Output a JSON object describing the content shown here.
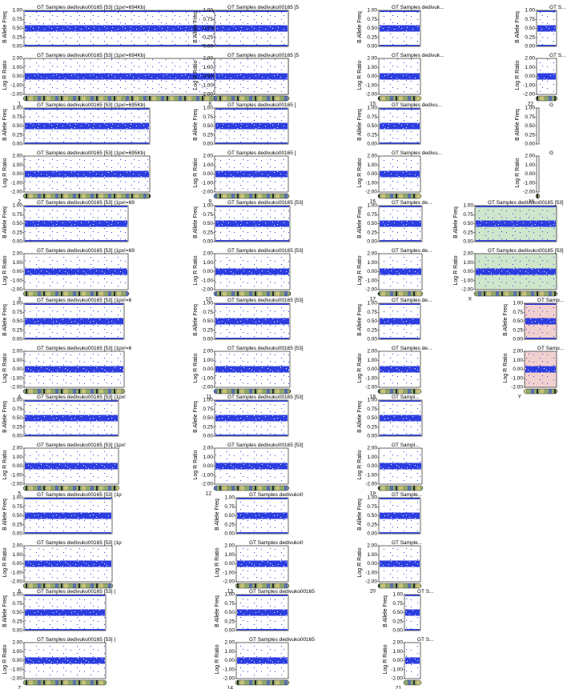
{
  "axis_labels": {
    "baf": "B Allele Freq",
    "lrr": "Log R Ratio"
  },
  "baf_ticks": [
    "1.00",
    "0.75",
    "0.50",
    "0.25",
    "0.00"
  ],
  "lrr_ticks": [
    "2.00",
    "1.00",
    "0.00",
    "-1.00",
    "-2.00"
  ],
  "panels": [
    {
      "chromosome": "1",
      "title": "GT Samples dedivuko00165 [53]  (1px!=694Kb)"
    },
    {
      "chromosome": "2",
      "title": "GT Samples dedivuko00165 [53]  (1px!=695Kb)"
    },
    {
      "chromosome": "3",
      "title": "GT Samples dedivuko00165 [53]  (1px!=69"
    },
    {
      "chromosome": "4",
      "title": "GT Samples dedivuko00165 [53]  (1px!=6"
    },
    {
      "chromosome": "5",
      "title": "GT Samples dedivuko00165 [53]  (1px!"
    },
    {
      "chromosome": "6",
      "title": "GT Samples dedivuko00165 [53]  (1p"
    },
    {
      "chromosome": "7",
      "title": "GT Samples dedivuko00165 [53]  ("
    },
    {
      "chromosome": "8",
      "title": "GT Samples dedivuko00165 [5"
    },
    {
      "chromosome": "9",
      "title": "GT Samples dedivuko00165 ["
    },
    {
      "chromosome": "10",
      "title": "GT Samples dedivuko00165 [53]"
    },
    {
      "chromosome": "11",
      "title": "GT Samples dedivuko00165 [53]"
    },
    {
      "chromosome": "12",
      "title": "GT Samples dedivuko00165 [53]"
    },
    {
      "chromosome": "13",
      "title": "GT Samples dedivuko0"
    },
    {
      "chromosome": "14",
      "title": "GT Samples dedivuko00165"
    },
    {
      "chromosome": "15",
      "title": "GT Samples dedivuk..."
    },
    {
      "chromosome": "16",
      "title": "GT Samples dedivu..."
    },
    {
      "chromosome": "17",
      "title": "GT Samples de..."
    },
    {
      "chromosome": "18",
      "title": "GT Samples de..."
    },
    {
      "chromosome": "19",
      "title": "GT Sampl..."
    },
    {
      "chromosome": "20",
      "title": "GT Sample..."
    },
    {
      "chromosome": "21",
      "title": "GT S..."
    },
    {
      "chromosome": "22",
      "title": "GT S..."
    },
    {
      "chromosome": "M",
      "title": "G"
    },
    {
      "chromosome": "X",
      "title": "GT Samples dedivuko00165 [53]"
    },
    {
      "chromosome": "Y",
      "title": "GT Samp..."
    }
  ]
}
